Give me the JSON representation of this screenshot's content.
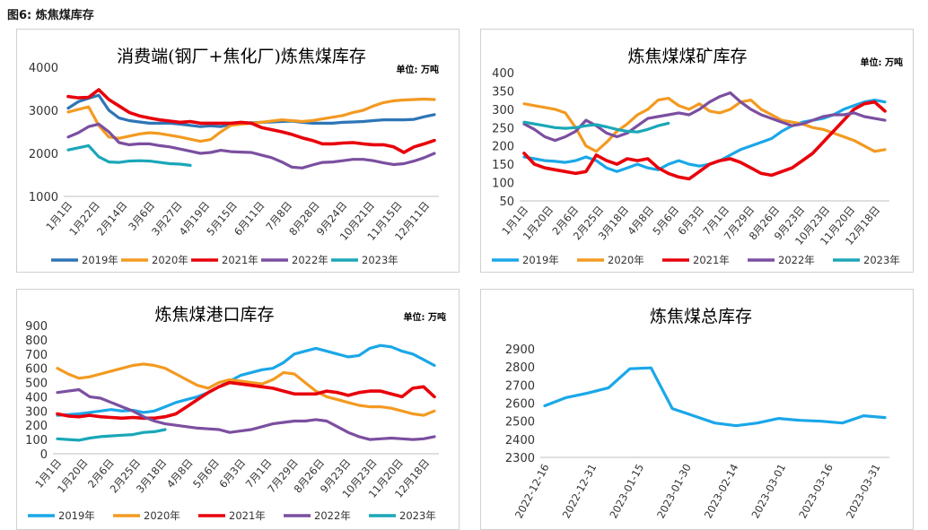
{
  "figure_title": "图6:  炼焦煤库存",
  "chart_data": [
    {
      "type": "line",
      "title": "消费端(钢厂+焦化厂)炼焦煤库存",
      "unit_label": "单位: 万吨",
      "ylim": [
        1000,
        4000
      ],
      "yticks": [
        "1000",
        "2000",
        "3000",
        "4000"
      ],
      "xticks": [
        "1月1日",
        "1月22日",
        "2月14日",
        "3月6日",
        "3月27日",
        "4月19日",
        "5月15日",
        "6月11日",
        "7月8日",
        "8月28日",
        "9月24日",
        "10月21日",
        "11月15日",
        "12月11日"
      ],
      "grid": false,
      "legend_position": "bottom",
      "series": [
        {
          "name": "2019年",
          "color": "#2e75b6",
          "values": [
            3050,
            3200,
            3280,
            3350,
            3000,
            2820,
            2760,
            2730,
            2700,
            2700,
            2700,
            2680,
            2650,
            2620,
            2640,
            2620,
            2680,
            2700,
            2710,
            2720,
            2730,
            2740,
            2750,
            2720,
            2700,
            2700,
            2700,
            2720,
            2730,
            2740,
            2760,
            2780,
            2780,
            2780,
            2790,
            2850,
            2900
          ]
        },
        {
          "name": "2020年",
          "color": "#f39a21",
          "values": [
            2960,
            3020,
            3080,
            2650,
            2380,
            2350,
            2400,
            2450,
            2480,
            2460,
            2420,
            2380,
            2330,
            2280,
            2320,
            2500,
            2650,
            2680,
            2700,
            2720,
            2750,
            2780,
            2760,
            2740,
            2760,
            2800,
            2840,
            2880,
            2950,
            3000,
            3100,
            3180,
            3220,
            3240,
            3250,
            3260,
            3250
          ]
        },
        {
          "name": "2021年",
          "color": "#e8000b",
          "values": [
            3320,
            3290,
            3300,
            3480,
            3250,
            3100,
            2950,
            2870,
            2820,
            2780,
            2750,
            2720,
            2740,
            2700,
            2700,
            2700,
            2700,
            2720,
            2700,
            2600,
            2550,
            2500,
            2440,
            2360,
            2300,
            2220,
            2220,
            2240,
            2250,
            2220,
            2200,
            2200,
            2150,
            2020,
            2150,
            2220,
            2300
          ]
        },
        {
          "name": "2022年",
          "color": "#7b4fa0",
          "values": [
            2380,
            2480,
            2620,
            2680,
            2500,
            2250,
            2200,
            2220,
            2220,
            2180,
            2150,
            2100,
            2050,
            2000,
            2020,
            2070,
            2040,
            2030,
            2020,
            1960,
            1900,
            1800,
            1680,
            1660,
            1730,
            1790,
            1800,
            1830,
            1860,
            1860,
            1830,
            1780,
            1740,
            1760,
            1820,
            1900,
            2000
          ]
        },
        {
          "name": "2023年",
          "color": "#1aa7b8",
          "values": [
            2080,
            2130,
            2180,
            1920,
            1800,
            1790,
            1820,
            1830,
            1820,
            1790,
            1760,
            1750,
            1720
          ]
        }
      ]
    },
    {
      "type": "line",
      "title": "炼焦煤煤矿库存",
      "unit_label": "单位: 万吨",
      "ylim": [
        50,
        400
      ],
      "yticks": [
        "50",
        "100",
        "150",
        "200",
        "250",
        "300",
        "350",
        "400"
      ],
      "xticks": [
        "1月1日",
        "1月20日",
        "2月6日",
        "2月25日",
        "3月18日",
        "4月8日",
        "5月6日",
        "6月3日",
        "7月1日",
        "7月29日",
        "8月26日",
        "9月23日",
        "10月23日",
        "11月20日",
        "12月18日"
      ],
      "grid": false,
      "legend_position": "bottom",
      "series": [
        {
          "name": "2019年",
          "color": "#1aa7e8",
          "values": [
            170,
            165,
            160,
            158,
            155,
            160,
            170,
            160,
            140,
            130,
            140,
            150,
            140,
            135,
            150,
            160,
            150,
            145,
            150,
            160,
            175,
            190,
            200,
            210,
            220,
            240,
            255,
            265,
            270,
            275,
            285,
            300,
            310,
            320,
            325,
            320
          ]
        },
        {
          "name": "2020年",
          "color": "#f39a21",
          "values": [
            315,
            310,
            305,
            300,
            290,
            250,
            200,
            185,
            210,
            240,
            260,
            285,
            300,
            325,
            330,
            310,
            300,
            315,
            295,
            290,
            300,
            320,
            325,
            300,
            285,
            270,
            265,
            260,
            250,
            245,
            235,
            225,
            215,
            200,
            185,
            190
          ]
        },
        {
          "name": "2021年",
          "color": "#e8000b",
          "values": [
            180,
            150,
            140,
            135,
            130,
            125,
            130,
            175,
            160,
            150,
            165,
            160,
            165,
            140,
            125,
            115,
            110,
            130,
            150,
            160,
            165,
            155,
            140,
            125,
            120,
            130,
            140,
            160,
            180,
            210,
            240,
            270,
            300,
            315,
            320,
            295
          ]
        },
        {
          "name": "2022年",
          "color": "#7b4fa0",
          "values": [
            260,
            245,
            225,
            215,
            225,
            240,
            270,
            255,
            235,
            225,
            235,
            255,
            275,
            280,
            285,
            290,
            285,
            300,
            320,
            335,
            345,
            320,
            300,
            285,
            275,
            265,
            255,
            260,
            270,
            280,
            285,
            285,
            290,
            280,
            275,
            270
          ]
        },
        {
          "name": "2023年",
          "color": "#1aa7b8",
          "values": [
            265,
            260,
            255,
            250,
            248,
            250,
            255,
            258,
            252,
            245,
            240,
            238,
            245,
            255,
            262
          ]
        }
      ]
    },
    {
      "type": "line",
      "title": "炼焦煤港口库存",
      "unit_label": "单位: 万吨",
      "ylim": [
        0,
        900
      ],
      "yticks": [
        "0",
        "100",
        "200",
        "300",
        "400",
        "500",
        "600",
        "700",
        "800",
        "900"
      ],
      "xticks": [
        "1月1日",
        "1月20日",
        "2月6日",
        "2月25日",
        "3月18日",
        "4月8日",
        "5月6日",
        "6月3日",
        "7月1日",
        "7月29日",
        "8月26日",
        "9月23日",
        "10月23日",
        "11月20日",
        "12月18日"
      ],
      "grid": false,
      "legend_position": "bottom",
      "series": [
        {
          "name": "2019年",
          "color": "#1aa7e8",
          "values": [
            270,
            275,
            280,
            290,
            300,
            310,
            300,
            305,
            290,
            300,
            330,
            360,
            380,
            400,
            430,
            470,
            510,
            550,
            570,
            590,
            600,
            640,
            700,
            720,
            740,
            720,
            700,
            680,
            690,
            740,
            760,
            750,
            720,
            700,
            660,
            620
          ]
        },
        {
          "name": "2020年",
          "color": "#f39a21",
          "values": [
            600,
            560,
            530,
            540,
            560,
            580,
            600,
            620,
            630,
            620,
            600,
            560,
            520,
            480,
            460,
            500,
            520,
            510,
            500,
            490,
            520,
            570,
            560,
            500,
            440,
            400,
            380,
            360,
            340,
            330,
            330,
            320,
            300,
            280,
            270,
            300
          ]
        },
        {
          "name": "2021年",
          "color": "#e8000b",
          "values": [
            280,
            265,
            260,
            270,
            260,
            255,
            250,
            255,
            250,
            250,
            260,
            280,
            330,
            380,
            430,
            470,
            500,
            490,
            480,
            470,
            460,
            440,
            420,
            420,
            420,
            440,
            430,
            410,
            430,
            440,
            440,
            420,
            400,
            460,
            470,
            400
          ]
        },
        {
          "name": "2022年",
          "color": "#7b4fa0",
          "values": [
            430,
            440,
            450,
            400,
            390,
            360,
            330,
            300,
            260,
            230,
            210,
            200,
            190,
            180,
            175,
            170,
            150,
            160,
            170,
            190,
            210,
            220,
            230,
            230,
            240,
            230,
            190,
            150,
            120,
            100,
            105,
            110,
            105,
            100,
            105,
            120
          ]
        },
        {
          "name": "2023年",
          "color": "#1aa7b8",
          "values": [
            105,
            100,
            95,
            110,
            120,
            125,
            130,
            135,
            150,
            155,
            170
          ]
        }
      ]
    },
    {
      "type": "line",
      "title": "炼焦煤总库存",
      "ylim": [
        2300,
        2900
      ],
      "yticks": [
        "2300",
        "2400",
        "2500",
        "2600",
        "2700",
        "2800",
        "2900"
      ],
      "xticks": [
        "2022-12-16",
        "2022-12-31",
        "2023-01-15",
        "2023-01-30",
        "2023-02-14",
        "2023-03-01",
        "2023-03-16",
        "2023-03-31"
      ],
      "grid": false,
      "legend_position": "none",
      "series": [
        {
          "name": "总库存",
          "color": "#1aa7e8",
          "values": [
            2585,
            2630,
            2655,
            2685,
            2790,
            2795,
            2570,
            2530,
            2490,
            2475,
            2490,
            2515,
            2505,
            2500,
            2490,
            2530,
            2520
          ]
        }
      ]
    }
  ]
}
